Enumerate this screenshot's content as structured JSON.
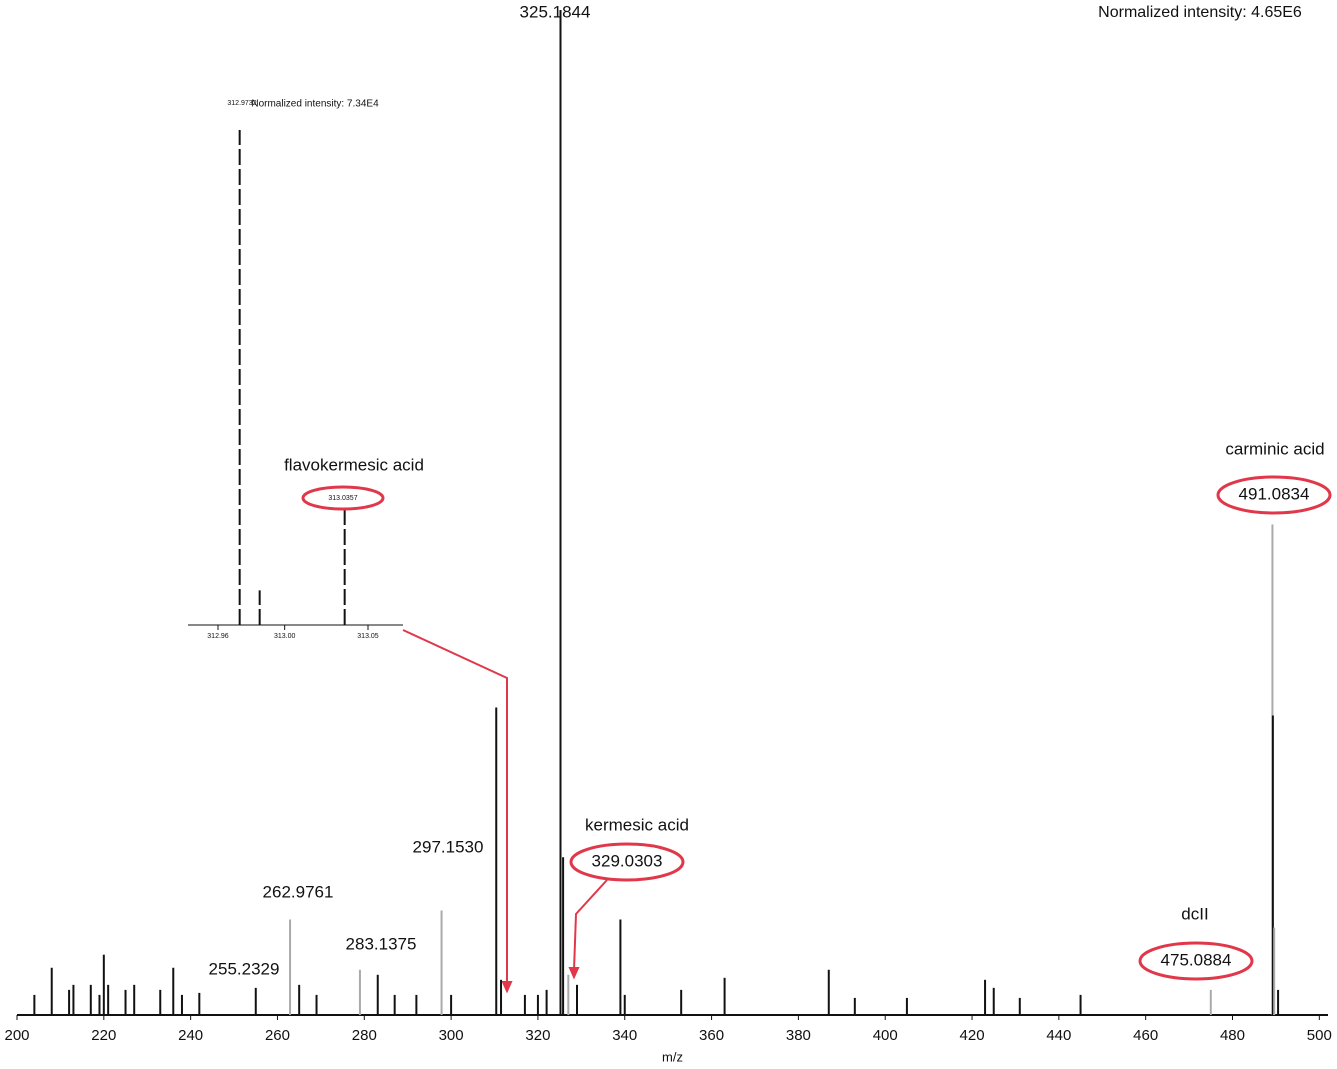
{
  "chart_data": [
    {
      "type": "spectrum",
      "title": "Normalized intensity: 4.65E6",
      "xlabel": "m/z",
      "x": [
        204,
        208,
        212,
        213,
        217,
        219,
        220,
        221,
        225,
        227,
        233,
        236,
        238,
        242,
        255,
        262.9,
        265,
        269,
        279,
        283.1,
        287,
        292,
        297.8,
        300,
        310.4,
        311.5,
        317,
        320,
        322,
        325.2,
        325.8,
        327,
        329,
        339,
        340,
        353,
        363,
        387,
        393,
        405,
        423,
        425,
        431,
        445,
        475,
        489.2,
        489.3,
        489.6,
        490.5
      ],
      "values": [
        2,
        4.7,
        2.5,
        3,
        3,
        2,
        6,
        3,
        2.5,
        3,
        2.5,
        4.7,
        2,
        2.2,
        2.7,
        9.5,
        3,
        2,
        4.5,
        4,
        2,
        2,
        10.4,
        2,
        30.6,
        3.5,
        2,
        2,
        2.5,
        100,
        15.7,
        4,
        3,
        9.5,
        2,
        2.5,
        3.7,
        4.5,
        1.7,
        1.7,
        3.5,
        2.7,
        1.7,
        2,
        2.5,
        48.8,
        29.8,
        8.7,
        2.5
      ],
      "colors": [
        "#111",
        "#111",
        "#111",
        "#111",
        "#111",
        "#111",
        "#111",
        "#111",
        "#111",
        "#111",
        "#111",
        "#111",
        "#111",
        "#111",
        "#111",
        "#aaa",
        "#111",
        "#111",
        "#aaa",
        "#111",
        "#111",
        "#111",
        "#aaa",
        "#111",
        "#111",
        "#111",
        "#111",
        "#111",
        "#111",
        "#111",
        "#111",
        "#aaa",
        "#111",
        "#111",
        "#111",
        "#111",
        "#111",
        "#111",
        "#111",
        "#111",
        "#111",
        "#111",
        "#111",
        "#111",
        "#aaa",
        "#aaa",
        "#111",
        "#aaa",
        "#111"
      ],
      "xlim": [
        200,
        502
      ],
      "ylim": [
        0,
        100
      ],
      "xticks": [
        200,
        220,
        240,
        260,
        280,
        300,
        320,
        340,
        360,
        380,
        400,
        420,
        440,
        460,
        480,
        500
      ],
      "annotations": [
        "325.1844",
        "297.1530",
        "262.9761",
        "255.2329",
        "283.1375",
        "kermesic acid",
        "329.0303",
        "carminic acid",
        "491.0834",
        "dcII",
        "475.0884"
      ]
    },
    {
      "type": "spectrum",
      "title": "Normalized intensity: 7.34E4",
      "x": [
        312.973,
        312.985,
        313.036
      ],
      "values": [
        100,
        7,
        24
      ],
      "colors": [
        "#111",
        "#111",
        "#111"
      ],
      "xlim": [
        312.942,
        313.071
      ],
      "ylim": [
        0,
        100
      ],
      "xticks": [
        312.96,
        {
          "value": 313,
          "label": "313.00"
        },
        313.05
      ],
      "annotations": [
        "312.9732",
        "313.0357",
        "flavokermesic acid"
      ]
    }
  ]
}
